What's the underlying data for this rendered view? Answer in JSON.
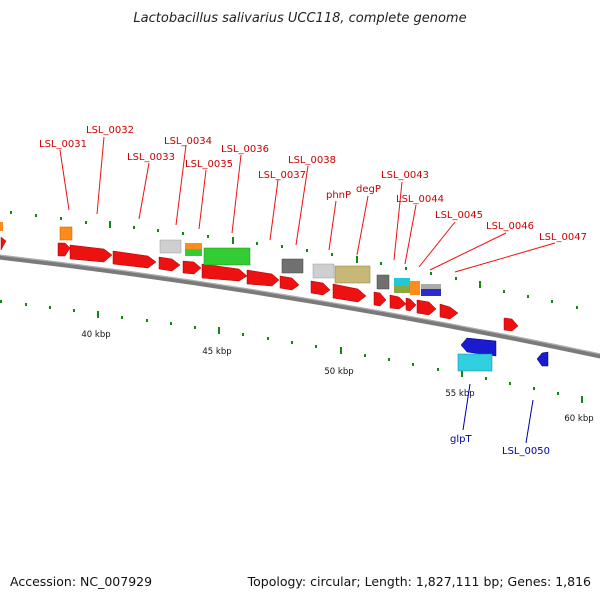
{
  "title": "Lactobacillus salivarius UCC118, complete genome",
  "footer": {
    "accession": "Accession: NC_007929",
    "summary": "Topology: circular; Length: 1,827,111 bp; Genes: 1,816"
  },
  "colors": {
    "forward_cds": "#ee1111",
    "reverse_cds": "#1a1ad0",
    "backbone": "#808080",
    "tick": "#118811",
    "label_red": "#cc0000",
    "label_blue": "#0000aa"
  },
  "ticks": [
    "40 kbp",
    "45 kbp",
    "50 kbp",
    "55 kbp",
    "60 kbp"
  ],
  "gene_labels_forward": [
    "LSL_0031",
    "LSL_0032",
    "LSL_0033",
    "LSL_0034",
    "LSL_0035",
    "LSL_0036",
    "LSL_0037",
    "LSL_0038",
    "phnP",
    "degP",
    "LSL_0043",
    "LSL_0044",
    "LSL_0045",
    "LSL_0046",
    "LSL_0047"
  ],
  "gene_labels_reverse": [
    "glpT",
    "LSL_0050"
  ]
}
